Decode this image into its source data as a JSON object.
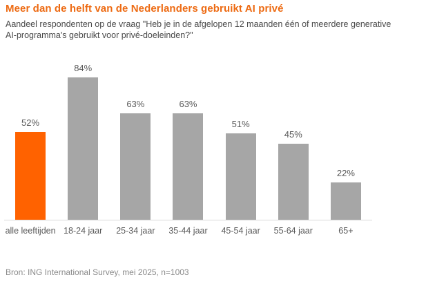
{
  "header": {
    "title": "Meer dan de helft van de Nederlanders gebruikt AI privé",
    "subtitle": "Aandeel respondenten op de vraag \"Heb je in de afgelopen 12 maanden één of meerdere generative AI-programma's gebruikt voor privé-doeleinden?\""
  },
  "footer": {
    "source": "Bron: ING International Survey, mei 2025, n=1003"
  },
  "colors": {
    "title": "#ed6a12",
    "highlight_bar": "#ff6200",
    "default_bar": "#a6a6a6",
    "axis_line": "#d9d9d9",
    "label_text": "#595959",
    "source_text": "#8a8a8a"
  },
  "chart_data": {
    "type": "bar",
    "title": "Meer dan de helft van de Nederlanders gebruikt AI privé",
    "subtitle": "Aandeel respondenten op de vraag \"Heb je in de afgelopen 12 maanden één of meerdere generative AI-programma's gebruikt voor privé-doeleinden?\"",
    "categories": [
      "alle leeftijden",
      "18-24 jaar",
      "25-34 jaar",
      "35-44 jaar",
      "45-54 jaar",
      "55-64 jaar",
      "65+"
    ],
    "values": [
      52,
      84,
      63,
      63,
      51,
      45,
      22
    ],
    "value_labels": [
      "52%",
      "84%",
      "63%",
      "63%",
      "51%",
      "45%",
      "22%"
    ],
    "highlight_index": 0,
    "unit": "%",
    "xlabel": "",
    "ylabel": "",
    "ylim": [
      0,
      95
    ],
    "grid": false,
    "legend": "none",
    "source": "Bron: ING International Survey, mei 2025, n=1003"
  }
}
